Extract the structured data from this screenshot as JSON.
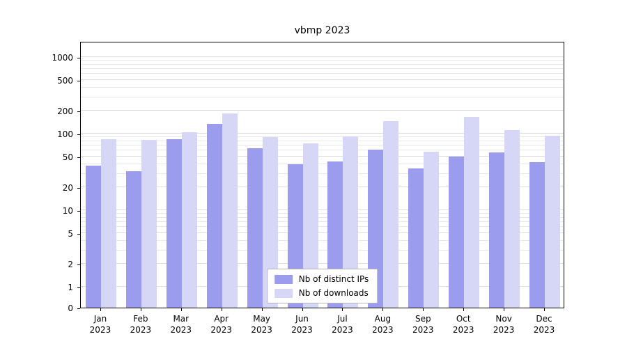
{
  "chart_data": {
    "type": "bar",
    "title": "vbmp 2023",
    "categories": [
      "Jan",
      "Feb",
      "Mar",
      "Apr",
      "May",
      "Jun",
      "Jul",
      "Aug",
      "Sep",
      "Oct",
      "Nov",
      "Dec"
    ],
    "year": "2023",
    "series": [
      {
        "name": "Nb of distinct IPs",
        "color": "#9c9cee",
        "values": [
          38,
          32,
          85,
          135,
          65,
          40,
          43,
          62,
          35,
          50,
          57,
          42
        ]
      },
      {
        "name": "Nb of downloads",
        "color": "#d6d6f7",
        "values": [
          85,
          82,
          105,
          185,
          90,
          75,
          92,
          145,
          58,
          165,
          112,
          93
        ]
      }
    ],
    "yscale": "symlog",
    "yticks": [
      0,
      1,
      2,
      5,
      10,
      20,
      50,
      100,
      200,
      500,
      1000
    ],
    "ylim": [
      0,
      1200
    ],
    "xlabel": "",
    "ylabel": "",
    "legend_position": "lower center",
    "grid": true
  }
}
